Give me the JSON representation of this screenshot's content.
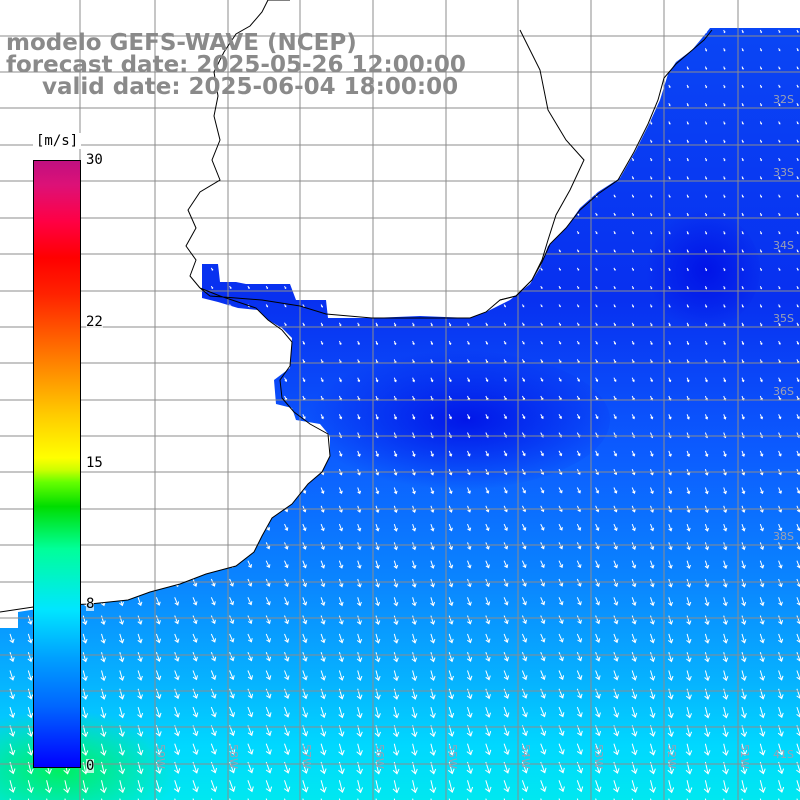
{
  "title": {
    "model": "modelo GEFS-WAVE (NCEP)",
    "forecast": "forecast date: 2025-05-26 12:00:00",
    "valid": "valid date: 2025-06-04 18:00:00"
  },
  "colorbar": {
    "unit": "[m/s]",
    "ticks": [
      {
        "label": "30",
        "value": 30
      },
      {
        "label": "22",
        "value": 22
      },
      {
        "label": "15",
        "value": 15
      },
      {
        "label": "8",
        "value": 8
      },
      {
        "label": "0",
        "value": 0
      }
    ],
    "range": [
      0,
      30
    ]
  },
  "map": {
    "lat_labels": [
      "32S",
      "33S",
      "34S",
      "35S",
      "36S",
      "38S",
      "41S"
    ],
    "lon_labels": [
      "59W",
      "58W",
      "57W",
      "56W",
      "55W",
      "54W",
      "53W",
      "52W",
      "51W"
    ],
    "colors": {
      "land": "#ffffff",
      "sea_deep_blue": "#0018f0",
      "sea_mid_blue": "#0060ff",
      "sea_light": "#00c8ff",
      "grid": "#8c8c8c",
      "coast": "#000000"
    }
  }
}
